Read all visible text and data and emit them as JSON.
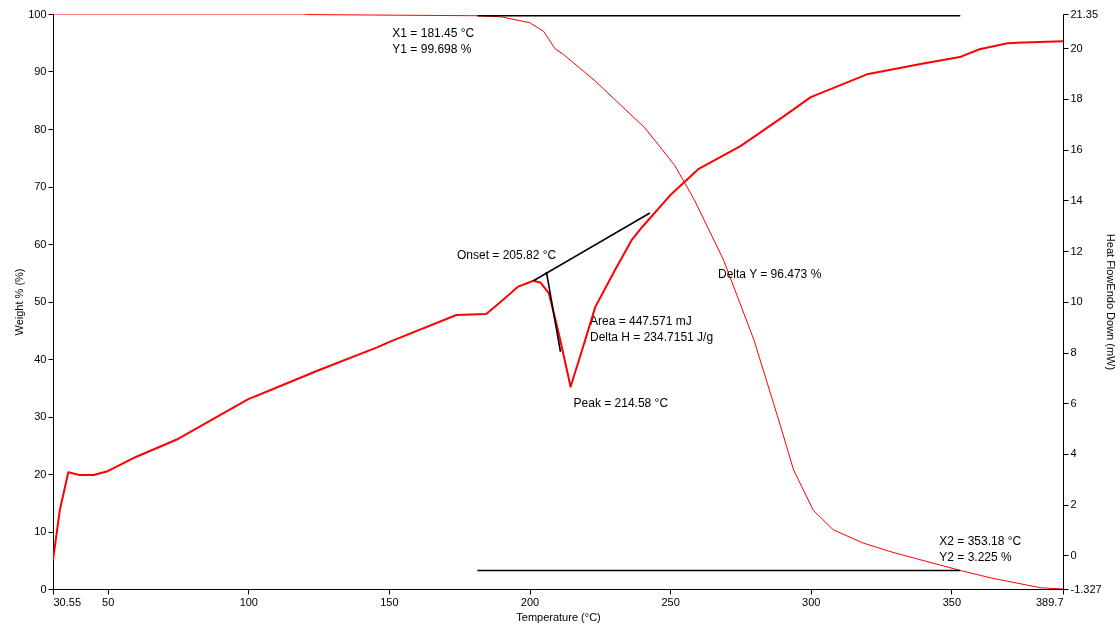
{
  "chart_data": {
    "type": "line",
    "xlabel": "Temperature (°C)",
    "ylabel": "Weight % (%)",
    "y2label": "Heat FlowEndo Down (mW)",
    "xlim": [
      30.55,
      389.7
    ],
    "xticks": [
      30.55,
      50,
      100,
      150,
      200,
      250,
      300,
      350,
      389.7
    ],
    "ylim": [
      0,
      100
    ],
    "yticks": [
      0,
      10,
      20,
      30,
      40,
      50,
      60,
      70,
      80,
      90,
      100
    ],
    "y2lim": [
      -1.327,
      21.35
    ],
    "y2ticks": [
      -1.327,
      0,
      2,
      4,
      6,
      8,
      10,
      12,
      14,
      16,
      18,
      20,
      21.35
    ],
    "grid": false,
    "series": [
      {
        "color": "#ff0000",
        "axis": "y",
        "x": [
          30.55,
          120,
          121,
          181.45,
          190,
          200,
          205,
          209,
          212,
          223,
          241,
          251.6,
          258.6,
          269,
          279.8,
          288.6,
          293.9,
          300.9,
          308,
          318.6,
          329,
          353.18,
          364.3,
          381.9,
          389.7
        ],
        "values": [
          100,
          100,
          99.9,
          99.698,
          99.5,
          98.5,
          97,
          94,
          93,
          88.5,
          80.2,
          73.7,
          67.7,
          57.2,
          43.3,
          29.4,
          20.7,
          13.7,
          10.3,
          8.0,
          6.4,
          3.225,
          1.9,
          0.2,
          0
        ]
      },
      {
        "color": "#ff0000",
        "axis": "y2",
        "x": [
          30.55,
          33,
          36,
          40,
          45,
          50,
          60,
          75,
          100,
          125,
          145.8,
          150,
          174,
          184.6,
          190.5,
          196,
          201.4,
          204,
          206.9,
          210.4,
          214.6,
          218.7,
          223.4,
          230.4,
          236.3,
          240,
          250,
          260,
          275,
          290,
          300,
          320,
          340,
          353,
          360,
          370,
          389.7
        ],
        "values": [
          -0.19,
          1.8,
          3.28,
          3.17,
          3.17,
          3.32,
          3.88,
          4.59,
          6.16,
          7.3,
          8.2,
          8.41,
          9.48,
          9.52,
          10.07,
          10.6,
          10.83,
          10.75,
          10.33,
          8.75,
          6.65,
          8.1,
          9.8,
          11.25,
          12.43,
          12.94,
          14.2,
          15.23,
          16.14,
          17.28,
          18.07,
          18.97,
          19.4,
          19.65,
          19.96,
          20.2,
          20.28
        ]
      },
      {
        "color": "#000000",
        "axis": "y",
        "x": [
          181.45,
          353.18
        ],
        "values": [
          99.698,
          99.698
        ]
      },
      {
        "color": "#000000",
        "axis": "y",
        "x": [
          181.45,
          353.18
        ],
        "values": [
          3.225,
          3.225
        ]
      },
      {
        "color": "#000000",
        "axis": "y2",
        "x": [
          201.4,
          242.8
        ],
        "values": [
          10.83,
          13.5
        ]
      },
      {
        "color": "#000000",
        "axis": "y2",
        "x": [
          206.0,
          211.0
        ],
        "values": [
          11.18,
          8.03
        ]
      }
    ],
    "annotations": [
      {
        "text": "X1 = 181.45 °C",
        "x": 181.45,
        "y": 99.698
      },
      {
        "text": "Y1 = 99.698 %",
        "x": 181.45,
        "y": 99.698
      },
      {
        "text": "X2 = 353.18 °C",
        "x": 353.18,
        "y": 3.225
      },
      {
        "text": "Y2 = 3.225 %",
        "x": 353.18,
        "y": 3.225
      },
      "Onset = 205.82 °C",
      {
        "text": "Peak = 214.58 °C",
        "x": 214.58,
        "y": 34.6
      },
      {
        "text": "Area = 447.571 mJ",
        "x": 221.5,
        "y": 46.6
      },
      {
        "text": "Delta H = 234.7151 J/g",
        "x": 221.5,
        "y": 43.8
      },
      "Delta Y = 96.473 %"
    ]
  }
}
